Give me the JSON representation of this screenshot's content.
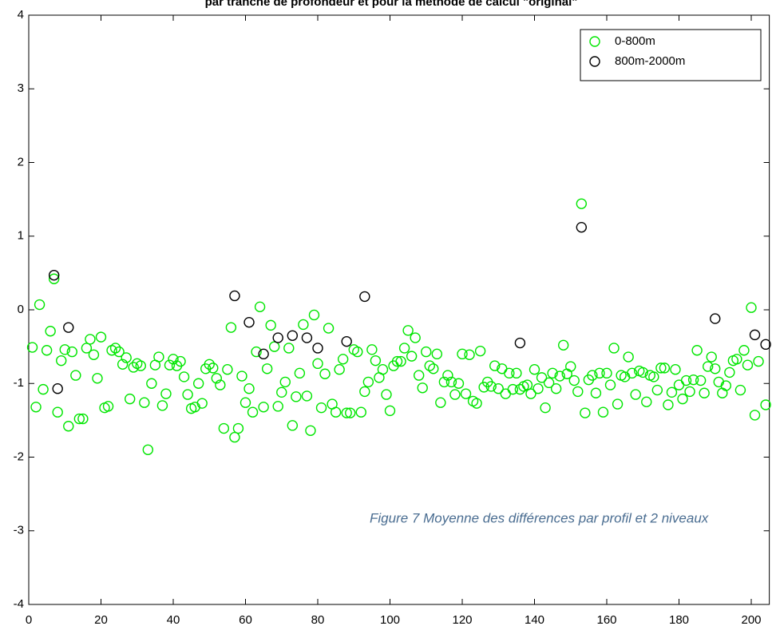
{
  "chart_data": {
    "type": "scatter",
    "title": "par tranche de profondeur et pour la méthode de calcul \"original\"",
    "annotation": "Figure 7 Moyenne des différences par profil et 2 niveaux",
    "xlim": [
      0,
      205
    ],
    "ylim": [
      -4,
      4
    ],
    "xticks": [
      0,
      20,
      40,
      60,
      80,
      100,
      120,
      140,
      160,
      180,
      200
    ],
    "yticks": [
      -4,
      -3,
      -2,
      -1,
      0,
      1,
      2,
      3,
      4
    ],
    "legend": "upper right",
    "series": [
      {
        "name": "0-800m",
        "color": "#00e600",
        "x": [
          1,
          2,
          3,
          4,
          5,
          6,
          7,
          8,
          9,
          10,
          11,
          12,
          13,
          14,
          15,
          16,
          17,
          18,
          19,
          20,
          21,
          22,
          23,
          24,
          25,
          26,
          27,
          28,
          29,
          30,
          31,
          32,
          33,
          34,
          35,
          36,
          37,
          38,
          39,
          40,
          41,
          42,
          43,
          44,
          45,
          46,
          47,
          48,
          49,
          50,
          51,
          52,
          53,
          54,
          55,
          56,
          57,
          58,
          59,
          60,
          61,
          62,
          63,
          64,
          65,
          66,
          67,
          68,
          69,
          70,
          71,
          72,
          73,
          74,
          75,
          76,
          77,
          78,
          79,
          80,
          81,
          82,
          83,
          84,
          85,
          86,
          87,
          88,
          89,
          90,
          91,
          92,
          93,
          94,
          95,
          96,
          97,
          98,
          99,
          100,
          101,
          102,
          103,
          104,
          105,
          106,
          107,
          108,
          109,
          110,
          111,
          112,
          113,
          114,
          115,
          116,
          117,
          118,
          119,
          120,
          121,
          122,
          123,
          124,
          125,
          126,
          127,
          128,
          129,
          130,
          131,
          132,
          133,
          134,
          135,
          136,
          137,
          138,
          139,
          140,
          141,
          142,
          143,
          144,
          145,
          146,
          147,
          148,
          149,
          150,
          151,
          152,
          153,
          154,
          155,
          156,
          157,
          158,
          159,
          160,
          161,
          162,
          163,
          164,
          165,
          166,
          167,
          168,
          169,
          170,
          171,
          172,
          173,
          174,
          175,
          176,
          177,
          178,
          179,
          180,
          181,
          182,
          183,
          184,
          185,
          186,
          187,
          188,
          189,
          190,
          191,
          192,
          193,
          194,
          195,
          196,
          197,
          198,
          199,
          200,
          201,
          202,
          204
        ],
        "values": [
          -0.51,
          -1.32,
          0.07,
          -1.08,
          -0.55,
          -0.29,
          0.42,
          -1.39,
          -0.69,
          -0.54,
          -1.58,
          -0.57,
          -0.89,
          -1.48,
          -1.48,
          -0.52,
          -0.4,
          -0.61,
          -0.93,
          -0.37,
          -1.33,
          -1.31,
          -0.55,
          -0.52,
          -0.57,
          -0.74,
          -0.65,
          -1.21,
          -0.78,
          -0.73,
          -0.76,
          -1.26,
          -1.9,
          -1.0,
          -0.75,
          -0.64,
          -1.3,
          -1.14,
          -0.75,
          -0.67,
          -0.76,
          -0.7,
          -0.91,
          -1.15,
          -1.34,
          -1.32,
          -1.0,
          -1.27,
          -0.8,
          -0.74,
          -0.79,
          -0.93,
          -1.02,
          -1.61,
          -0.81,
          -0.24,
          -1.73,
          -1.61,
          -0.9,
          -1.26,
          -1.07,
          -1.39,
          -0.57,
          0.04,
          -1.32,
          -0.8,
          -0.21,
          -0.5,
          -1.31,
          -1.12,
          -0.98,
          -0.52,
          -1.57,
          -1.18,
          -0.86,
          -0.2,
          -1.17,
          -1.64,
          -0.07,
          -0.73,
          -1.33,
          -0.87,
          -0.25,
          -1.28,
          -1.39,
          -0.81,
          -0.67,
          -1.4,
          -1.4,
          -0.54,
          -0.57,
          -1.39,
          -1.11,
          -0.98,
          -0.54,
          -0.69,
          -0.92,
          -0.81,
          -1.15,
          -1.37,
          -0.76,
          -0.7,
          -0.7,
          -0.52,
          -0.28,
          -0.63,
          -0.38,
          -0.89,
          -1.06,
          -0.57,
          -0.76,
          -0.8,
          -0.6,
          -1.26,
          -0.98,
          -0.89,
          -0.98,
          -1.15,
          -1.0,
          -0.6,
          -1.14,
          -0.61,
          -1.24,
          -1.27,
          -0.56,
          -1.05,
          -0.98,
          -1.04,
          -0.76,
          -1.07,
          -0.8,
          -1.14,
          -0.86,
          -1.08,
          -0.86,
          -1.08,
          -1.04,
          -1.02,
          -1.14,
          -0.81,
          -1.07,
          -0.92,
          -1.33,
          -0.99,
          -0.86,
          -1.07,
          -0.9,
          -0.48,
          -0.87,
          -0.77,
          -0.96,
          -1.11,
          1.44,
          -1.4,
          -0.95,
          -0.89,
          -1.13,
          -0.86,
          -1.39,
          -0.86,
          -1.02,
          -0.52,
          -1.28,
          -0.89,
          -0.91,
          -0.64,
          -0.86,
          -1.15,
          -0.83,
          -0.85,
          -1.25,
          -0.89,
          -0.91,
          -1.09,
          -0.79,
          -0.79,
          -1.29,
          -1.12,
          -0.81,
          -1.02,
          -1.21,
          -0.96,
          -1.11,
          -0.95,
          -0.55,
          -0.96,
          -1.13,
          -0.77,
          -0.64,
          -0.8,
          -0.98,
          -1.13,
          -1.03,
          -0.85,
          -0.69,
          -0.67,
          -1.09,
          -0.55,
          -0.75,
          0.03,
          -1.43,
          -0.7,
          -1.29
        ]
      },
      {
        "name": "800m-2000m",
        "color": "#000000",
        "x": [
          7,
          8,
          11,
          57,
          61,
          65,
          69,
          73,
          77,
          80,
          88,
          93,
          136,
          153,
          190,
          201,
          204
        ],
        "values": [
          0.47,
          -1.07,
          -0.24,
          0.19,
          -0.17,
          -0.6,
          -0.38,
          -0.35,
          -0.38,
          -0.52,
          -0.43,
          0.18,
          -0.45,
          1.12,
          -0.12,
          -0.34,
          -0.47
        ]
      }
    ]
  }
}
